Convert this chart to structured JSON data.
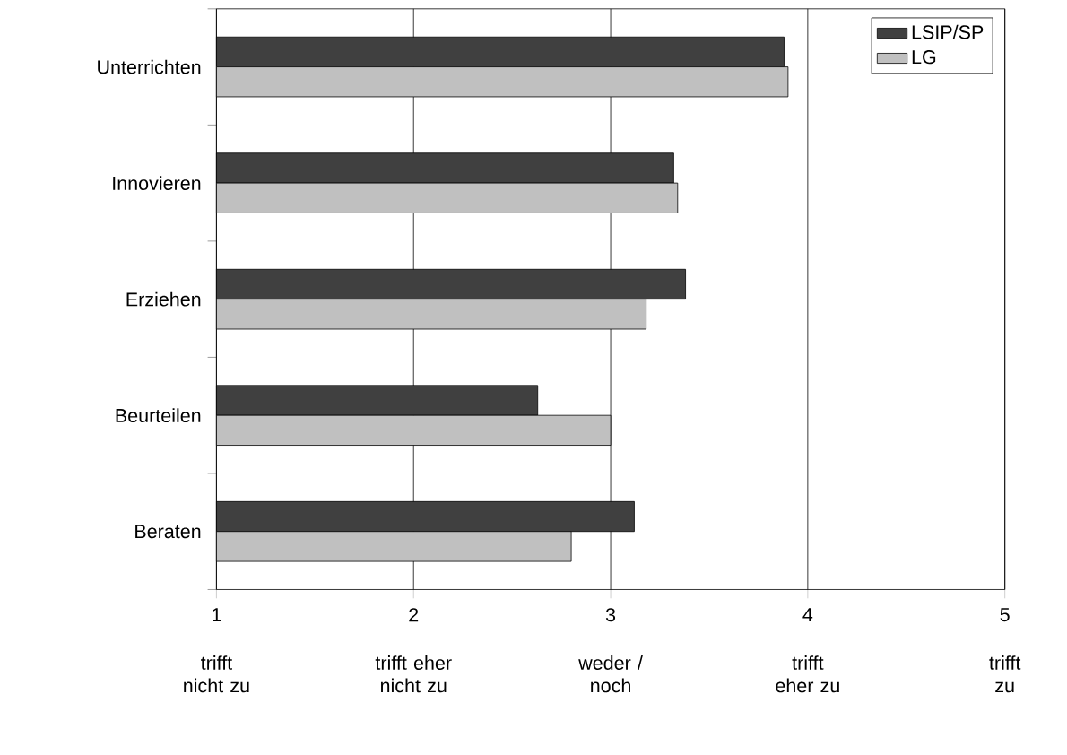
{
  "chart_data": {
    "type": "bar",
    "orientation": "horizontal",
    "categories": [
      "Unterrichten",
      "Innovieren",
      "Erziehen",
      "Beurteilen",
      "Beraten"
    ],
    "series": [
      {
        "name": "LSIP/SP",
        "color": "#404040",
        "values": [
          3.88,
          3.32,
          3.38,
          2.63,
          3.12
        ]
      },
      {
        "name": "LG",
        "color": "#c0c0c0",
        "values": [
          3.9,
          3.34,
          3.18,
          3.0,
          2.8
        ]
      }
    ],
    "xlim": [
      1,
      5
    ],
    "xticks": [
      1,
      2,
      3,
      4,
      5
    ],
    "annotations": [
      "trifft\nnicht zu",
      "trifft eher\nnicht zu",
      "weder /\nnoch",
      "trifft\neher zu",
      "trifft\nzu"
    ],
    "grid": "x",
    "legend": "top right"
  }
}
